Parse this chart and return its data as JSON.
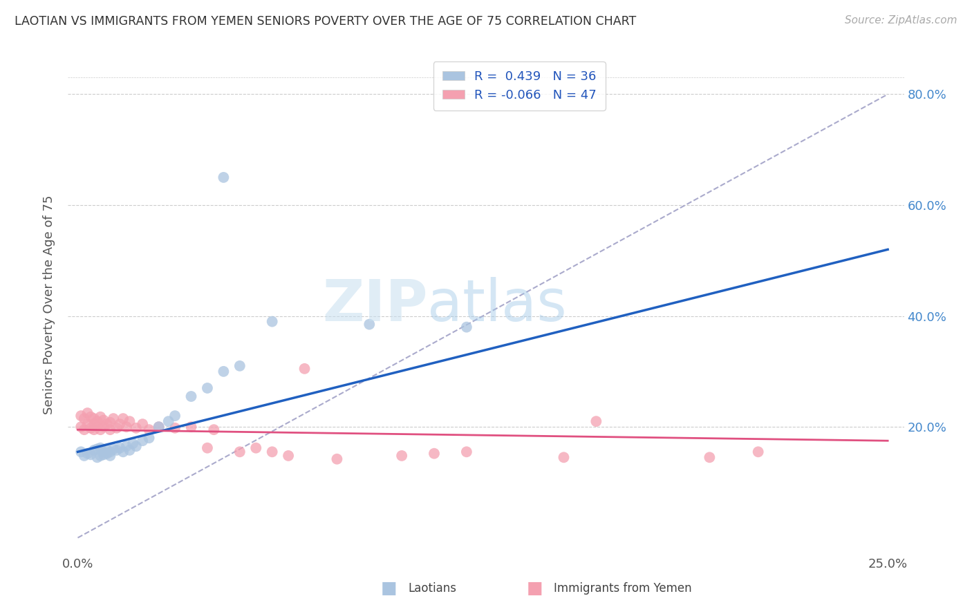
{
  "title": "LAOTIAN VS IMMIGRANTS FROM YEMEN SENIORS POVERTY OVER THE AGE OF 75 CORRELATION CHART",
  "source": "Source: ZipAtlas.com",
  "ylabel": "Seniors Poverty Over the Age of 75",
  "xlabel_laotian": "Laotians",
  "xlabel_yemen": "Immigrants from Yemen",
  "xmin": 0.0,
  "xmax": 0.25,
  "ymin": 0.0,
  "ymax": 0.85,
  "r_laotian": 0.439,
  "n_laotian": 36,
  "r_yemen": -0.066,
  "n_yemen": 47,
  "color_laotian": "#aac4e0",
  "color_yemen": "#f4a0b0",
  "lao_line_color": "#2060c0",
  "yem_line_color": "#e05080",
  "grid_color": "#cccccc",
  "dash_color": "#aaaacc",
  "laotian_x": [
    0.001,
    0.002,
    0.003,
    0.004,
    0.005,
    0.006,
    0.006,
    0.007,
    0.007,
    0.008,
    0.008,
    0.009,
    0.009,
    0.01,
    0.01,
    0.011,
    0.012,
    0.013,
    0.014,
    0.015,
    0.016,
    0.017,
    0.018,
    0.02,
    0.022,
    0.025,
    0.028,
    0.03,
    0.035,
    0.04,
    0.045,
    0.05,
    0.06,
    0.09,
    0.12,
    0.045
  ],
  "laotian_y": [
    0.155,
    0.148,
    0.152,
    0.15,
    0.158,
    0.145,
    0.16,
    0.148,
    0.162,
    0.15,
    0.155,
    0.152,
    0.158,
    0.148,
    0.155,
    0.16,
    0.158,
    0.162,
    0.155,
    0.165,
    0.158,
    0.17,
    0.165,
    0.175,
    0.18,
    0.2,
    0.21,
    0.22,
    0.255,
    0.27,
    0.3,
    0.31,
    0.39,
    0.385,
    0.38,
    0.65
  ],
  "yemen_x": [
    0.001,
    0.001,
    0.002,
    0.002,
    0.003,
    0.003,
    0.004,
    0.004,
    0.005,
    0.005,
    0.005,
    0.006,
    0.006,
    0.007,
    0.007,
    0.008,
    0.008,
    0.009,
    0.01,
    0.01,
    0.011,
    0.012,
    0.013,
    0.014,
    0.015,
    0.016,
    0.018,
    0.02,
    0.022,
    0.025,
    0.03,
    0.035,
    0.04,
    0.042,
    0.05,
    0.055,
    0.06,
    0.065,
    0.07,
    0.08,
    0.1,
    0.11,
    0.12,
    0.15,
    0.16,
    0.195,
    0.21
  ],
  "yemen_y": [
    0.2,
    0.22,
    0.195,
    0.215,
    0.205,
    0.225,
    0.198,
    0.218,
    0.195,
    0.205,
    0.215,
    0.2,
    0.21,
    0.195,
    0.218,
    0.2,
    0.212,
    0.205,
    0.195,
    0.208,
    0.215,
    0.198,
    0.205,
    0.215,
    0.2,
    0.21,
    0.198,
    0.205,
    0.195,
    0.2,
    0.198,
    0.2,
    0.162,
    0.195,
    0.155,
    0.162,
    0.155,
    0.148,
    0.305,
    0.142,
    0.148,
    0.152,
    0.155,
    0.145,
    0.21,
    0.145,
    0.155
  ]
}
